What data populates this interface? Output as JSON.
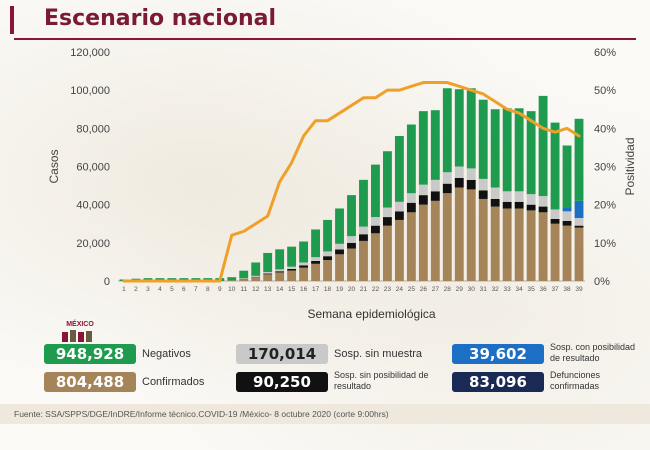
{
  "header": {
    "title": "Escenario nacional"
  },
  "chart_data": {
    "type": "bar",
    "title": "",
    "xlabel": "Semana epidemiológica",
    "ylabel": "Casos",
    "y2label": "Positividad",
    "ylim": [
      0,
      120000
    ],
    "y2lim": [
      0,
      60
    ],
    "yticks": [
      "0",
      "20,000",
      "40,000",
      "60,000",
      "80,000",
      "100,000",
      "120,000"
    ],
    "y2ticks": [
      "0%",
      "10%",
      "20%",
      "30%",
      "40%",
      "50%",
      "60%"
    ],
    "categories": [
      "1",
      "2",
      "3",
      "4",
      "5",
      "6",
      "7",
      "8",
      "9",
      "10",
      "11",
      "12",
      "13",
      "14",
      "15",
      "16",
      "17",
      "18",
      "19",
      "20",
      "21",
      "22",
      "23",
      "24",
      "25",
      "26",
      "27",
      "28",
      "29",
      "30",
      "31",
      "32",
      "33",
      "34",
      "35",
      "36",
      "37",
      "38",
      "39"
    ],
    "stack_series": [
      {
        "name": "Confirmados",
        "color": "#a48458",
        "values": [
          0,
          0,
          0,
          0,
          0,
          0,
          0,
          0,
          0,
          300,
          1000,
          2000,
          3500,
          4500,
          5500,
          7000,
          9000,
          11000,
          14000,
          17000,
          21000,
          25000,
          29000,
          32000,
          36000,
          40000,
          42000,
          46000,
          49000,
          48000,
          43000,
          39000,
          38000,
          38000,
          37000,
          36000,
          30000,
          29000,
          28000
        ]
      },
      {
        "name": "Defunciones",
        "color": "#111111",
        "values": [
          0,
          0,
          0,
          0,
          0,
          0,
          0,
          0,
          0,
          0,
          100,
          200,
          400,
          600,
          800,
          1200,
          1500,
          2000,
          2500,
          3000,
          3500,
          4000,
          4500,
          4500,
          5000,
          5000,
          5000,
          5000,
          5000,
          5000,
          4500,
          4000,
          3500,
          3500,
          3000,
          3000,
          2500,
          2500,
          1000
        ]
      },
      {
        "name": "Sosp. sin muestra",
        "color": "#c9c9c9",
        "values": [
          0,
          0,
          0,
          0,
          0,
          0,
          0,
          0,
          0,
          0,
          300,
          500,
          800,
          1000,
          1200,
          1500,
          2000,
          2500,
          3000,
          3500,
          4000,
          4500,
          5000,
          5000,
          5000,
          5500,
          6000,
          6000,
          6000,
          6000,
          6000,
          6000,
          5500,
          5500,
          5500,
          5500,
          5000,
          5000,
          4000
        ]
      },
      {
        "name": "Sosp. con posibilidad de resultado",
        "color": "#1d6fc6",
        "values": [
          0,
          0,
          0,
          0,
          0,
          0,
          0,
          0,
          0,
          0,
          0,
          0,
          0,
          0,
          0,
          0,
          0,
          0,
          0,
          0,
          0,
          0,
          0,
          0,
          0,
          0,
          0,
          0,
          0,
          0,
          0,
          0,
          0,
          0,
          0,
          0,
          0,
          2000,
          9000
        ]
      },
      {
        "name": "Negativos",
        "color": "#1e9b4e",
        "values": [
          800,
          1200,
          1500,
          1500,
          1500,
          1500,
          1500,
          1500,
          1500,
          1700,
          4000,
          7000,
          10000,
          10500,
          10500,
          11000,
          14500,
          16500,
          18500,
          21500,
          24500,
          27500,
          29500,
          34500,
          36000,
          38500,
          36500,
          44000,
          40500,
          42000,
          41500,
          41000,
          43500,
          43500,
          43500,
          52500,
          45500,
          32500,
          43000
        ]
      }
    ],
    "line": {
      "name": "Positividad",
      "color": "#f0a028",
      "axis": "y2",
      "values": [
        0,
        0,
        0,
        0,
        0,
        0,
        0,
        0,
        0,
        12,
        13,
        15,
        17,
        26,
        31,
        38,
        42,
        42,
        44,
        46,
        48,
        48,
        50,
        50,
        51,
        52,
        52,
        52,
        51,
        50,
        49,
        47,
        45,
        44,
        42,
        40,
        39,
        40,
        38
      ]
    },
    "legend_position": "bottom"
  },
  "legend": {
    "negativos": {
      "value": "948,928",
      "label": "Negativos",
      "color": "#1e9b4e"
    },
    "sin_muestra": {
      "value": "170,014",
      "label": "Sosp. sin muestra",
      "color": "#c9c9c9"
    },
    "con_posibilidad": {
      "value": "39,602",
      "label": "Sosp. con posibilidad de resultado",
      "color": "#1d6fc6"
    },
    "confirmados": {
      "value": "804,488",
      "label": "Confirmados",
      "color": "#a48458"
    },
    "sin_posibilidad": {
      "value": "90,250",
      "label": "Sosp. sin posibilidad de resultado",
      "color": "#111111"
    },
    "defunciones": {
      "value": "83,096",
      "label": "Defunciones confirmadas",
      "color": "#1b2a55"
    }
  },
  "logo_text": "MÉXICO",
  "footer": "Fuente: SSA/SPPS/DGE/InDRE/Informe técnico.COVID-19 /México- 8 octubre 2020 (corte 9:00hrs)"
}
